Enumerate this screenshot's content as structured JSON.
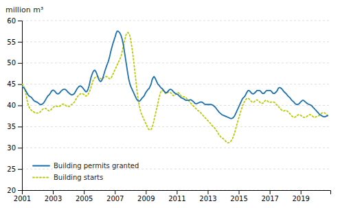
{
  "chart_data": {
    "type": "line",
    "y_label": "million m³",
    "xlim": [
      2001.0,
      2020.92
    ],
    "xticks": [
      2001,
      2003,
      2005,
      2007,
      2009,
      2011,
      2013,
      2015,
      2017,
      2019
    ],
    "ylim": [
      20,
      60
    ],
    "yticks": [
      20,
      25,
      30,
      35,
      40,
      45,
      50,
      55,
      60
    ],
    "grid": "y",
    "legend": "lower left",
    "x": [
      2001,
      2001.0627,
      2001.1254,
      2001.1881,
      2001.2508,
      2001.3135,
      2001.3762,
      2001.4389,
      2001.5016,
      2001.5643,
      2001.627,
      2001.6897,
      2001.7524,
      2001.8151,
      2001.8778,
      2001.9405,
      2002.0032,
      2002.0659,
      2002.1286,
      2002.1913,
      2002.254,
      2002.3167,
      2002.3794,
      2002.4421,
      2002.5048,
      2002.5675,
      2002.6302,
      2002.6929,
      2002.7556,
      2002.8183,
      2002.881,
      2002.9437,
      2003.0063,
      2003.069,
      2003.1317,
      2003.1944,
      2003.2571,
      2003.3198,
      2003.3825,
      2003.4452,
      2003.5079,
      2003.5706,
      2003.6333,
      2003.696,
      2003.7587,
      2003.8214,
      2003.8841,
      2003.9468,
      2004.0095,
      2004.0722,
      2004.1349,
      2004.1976,
      2004.2603,
      2004.323,
      2004.3857,
      2004.4484,
      2004.5111,
      2004.5738,
      2004.6365,
      2004.6992,
      2004.7619,
      2004.8246,
      2004.8873,
      2004.95,
      2005.0127,
      2005.0754,
      2005.1381,
      2005.2008,
      2005.2635,
      2005.3262,
      2005.3889,
      2005.4516,
      2005.5143,
      2005.577,
      2005.6397,
      2005.7024,
      2005.7651,
      2005.8278,
      2005.8905,
      2005.9532,
      2006.0159,
      2006.0786,
      2006.1413,
      2006.204,
      2006.2667,
      2006.3294,
      2006.3921,
      2006.4548,
      2006.5175,
      2006.5802,
      2006.6429,
      2006.7056,
      2006.7683,
      2006.831,
      2006.8937,
      2006.9563,
      2007.019,
      2007.0817,
      2007.1444,
      2007.2071,
      2007.2698,
      2007.3325,
      2007.3952,
      2007.4579,
      2007.5206,
      2007.5833,
      2007.646,
      2007.7087,
      2007.7714,
      2007.8341,
      2007.8968,
      2007.9595,
      2008.0222,
      2008.0849,
      2008.1476,
      2008.2103,
      2008.273,
      2008.3357,
      2008.3984,
      2008.4611,
      2008.5238,
      2008.5865,
      2008.6492,
      2008.7119,
      2008.7746,
      2008.8373,
      2008.9,
      2008.9627,
      2009.0254,
      2009.0881,
      2009.1508,
      2009.2135,
      2009.2762,
      2009.3389,
      2009.4016,
      2009.4643,
      2009.527,
      2009.5897,
      2009.6524,
      2009.7151,
      2009.7778,
      2009.8405,
      2009.9032,
      2009.9659,
      2010.0286,
      2010.0913,
      2010.154,
      2010.2167,
      2010.2794,
      2010.3421,
      2010.4048,
      2010.4675,
      2010.5302,
      2010.5929,
      2010.6556,
      2010.7183,
      2010.781,
      2010.8437,
      2010.9063,
      2010.969,
      2011.0317,
      2011.0944,
      2011.1571,
      2011.2198,
      2011.2825,
      2011.3452,
      2011.4079,
      2011.4706,
      2011.5333,
      2011.596,
      2011.6587,
      2011.7214,
      2011.7841,
      2011.8468,
      2011.9095,
      2011.9722,
      2012.0349,
      2012.0976,
      2012.1603,
      2012.223,
      2012.2857,
      2012.3484,
      2012.4111,
      2012.4738,
      2012.5365,
      2012.5992,
      2012.6619,
      2012.7246,
      2012.7873,
      2012.85,
      2012.9127,
      2012.9754,
      2013.0381,
      2013.1008,
      2013.1635,
      2013.2262,
      2013.2889,
      2013.3516,
      2013.4143,
      2013.477,
      2013.5397,
      2013.6024,
      2013.6651,
      2013.7278,
      2013.7905,
      2013.8532,
      2013.9159,
      2013.9786,
      2014.0413,
      2014.104,
      2014.1667,
      2014.2294,
      2014.2921,
      2014.3548,
      2014.4175,
      2014.4802,
      2014.5429,
      2014.6056,
      2014.6683,
      2014.731,
      2014.7937,
      2014.8563,
      2014.919,
      2014.9817,
      2015.0444,
      2015.1071,
      2015.1698,
      2015.2325,
      2015.2952,
      2015.3579,
      2015.4206,
      2015.4833,
      2015.546,
      2015.6087,
      2015.6714,
      2015.7341,
      2015.7968,
      2015.8595,
      2015.9222,
      2015.9849,
      2016.0476,
      2016.1103,
      2016.173,
      2016.2357,
      2016.2984,
      2016.3611,
      2016.4238,
      2016.4865,
      2016.5492,
      2016.6119,
      2016.6746,
      2016.7373,
      2016.8,
      2016.8627,
      2016.9254,
      2016.9881,
      2017.0508,
      2017.1135,
      2017.1762,
      2017.2389,
      2017.3016,
      2017.3643,
      2017.427,
      2017.4897,
      2017.5524,
      2017.6151,
      2017.6778,
      2017.7405,
      2017.8032,
      2017.8659,
      2017.9286,
      2017.9913,
      2018.054,
      2018.1167,
      2018.1794,
      2018.2421,
      2018.3048,
      2018.3675,
      2018.4302,
      2018.4929,
      2018.5556,
      2018.6183,
      2018.681,
      2018.7437,
      2018.8063,
      2018.869,
      2018.9317,
      2018.9944,
      2019.0571,
      2019.1198,
      2019.1825,
      2019.2452,
      2019.3079,
      2019.3706,
      2019.4333,
      2019.496,
      2019.5587,
      2019.6214,
      2019.6841,
      2019.7468,
      2019.8095,
      2019.8722,
      2019.9349,
      2019.9976,
      2020.0603,
      2020.123,
      2020.1857,
      2020.2484,
      2020.3111,
      2020.3738,
      2020.4365,
      2020.4992,
      2020.5619,
      2020.6246,
      2020.6873,
      2020.75
    ],
    "series": [
      {
        "name": "Building permits granted",
        "color": "#1a6faf",
        "line_style": "solid",
        "values": [
          44.5,
          44.3,
          44.1,
          43.8,
          43.4,
          43.0,
          42.6,
          42.3,
          42.1,
          42.0,
          41.8,
          41.5,
          41.2,
          41.0,
          40.9,
          40.8,
          40.7,
          40.5,
          40.3,
          40.2,
          40.2,
          40.3,
          40.5,
          40.8,
          41.2,
          41.6,
          42.0,
          42.3,
          42.5,
          42.8,
          43.2,
          43.5,
          43.6,
          43.5,
          43.3,
          43.0,
          42.8,
          42.7,
          42.8,
          43.0,
          43.3,
          43.5,
          43.7,
          43.8,
          43.8,
          43.7,
          43.5,
          43.2,
          43.0,
          42.8,
          42.6,
          42.5,
          42.5,
          42.6,
          42.8,
          43.2,
          43.6,
          44.0,
          44.3,
          44.5,
          44.6,
          44.5,
          44.3,
          44.0,
          43.7,
          43.4,
          43.2,
          43.3,
          43.8,
          44.5,
          45.5,
          46.5,
          47.2,
          47.8,
          48.2,
          48.3,
          48.0,
          47.5,
          46.8,
          46.2,
          45.8,
          45.6,
          45.8,
          46.3,
          47.0,
          47.8,
          48.5,
          49.2,
          49.8,
          50.4,
          51.2,
          52.2,
          53.2,
          54.0,
          54.8,
          55.5,
          56.2,
          57.0,
          57.5,
          57.5,
          57.3,
          57.0,
          56.5,
          55.8,
          54.8,
          53.5,
          52.0,
          50.5,
          49.0,
          47.5,
          46.2,
          45.2,
          44.5,
          44.0,
          43.5,
          43.0,
          42.5,
          42.0,
          41.5,
          41.2,
          41.0,
          41.0,
          41.2,
          41.5,
          41.8,
          42.0,
          42.3,
          42.8,
          43.2,
          43.5,
          43.8,
          44.0,
          44.5,
          45.0,
          46.0,
          46.5,
          46.8,
          46.5,
          46.0,
          45.5,
          45.0,
          44.8,
          44.5,
          44.2,
          44.0,
          43.8,
          43.5,
          43.2,
          43.0,
          43.0,
          43.2,
          43.5,
          43.7,
          43.8,
          43.7,
          43.5,
          43.2,
          43.0,
          42.8,
          42.7,
          42.6,
          42.5,
          42.2,
          42.0,
          41.8,
          41.7,
          41.6,
          41.5,
          41.3,
          41.2,
          41.2,
          41.2,
          41.2,
          41.3,
          41.3,
          41.2,
          41.0,
          40.8,
          40.5,
          40.4,
          40.4,
          40.5,
          40.6,
          40.7,
          40.8,
          40.8,
          40.7,
          40.5,
          40.3,
          40.2,
          40.2,
          40.2,
          40.2,
          40.2,
          40.2,
          40.2,
          40.1,
          40.0,
          39.8,
          39.6,
          39.3,
          39.0,
          38.7,
          38.4,
          38.2,
          38.0,
          37.8,
          37.7,
          37.6,
          37.5,
          37.4,
          37.3,
          37.2,
          37.1,
          37.0,
          36.9,
          36.9,
          37.0,
          37.2,
          37.5,
          38.0,
          38.5,
          39.0,
          39.5,
          40.0,
          40.5,
          41.0,
          41.5,
          41.8,
          42.0,
          42.3,
          42.8,
          43.2,
          43.5,
          43.5,
          43.3,
          43.0,
          42.8,
          42.7,
          42.8,
          43.0,
          43.2,
          43.5,
          43.5,
          43.5,
          43.5,
          43.3,
          43.0,
          42.8,
          42.8,
          43.0,
          43.3,
          43.5,
          43.5,
          43.5,
          43.5,
          43.5,
          43.3,
          43.0,
          42.8,
          42.8,
          43.0,
          43.2,
          43.5,
          44.0,
          44.2,
          44.2,
          44.0,
          43.8,
          43.5,
          43.2,
          43.0,
          42.8,
          42.5,
          42.2,
          42.0,
          41.8,
          41.5,
          41.2,
          41.0,
          40.8,
          40.5,
          40.3,
          40.2,
          40.2,
          40.3,
          40.5,
          40.8,
          41.0,
          41.2,
          41.2,
          41.0,
          40.8,
          40.6,
          40.4,
          40.3,
          40.2,
          40.1,
          40.0,
          39.8,
          39.5,
          39.3,
          39.0,
          38.8,
          38.5,
          38.3,
          38.0,
          37.8,
          37.7,
          37.5,
          37.4,
          37.3,
          37.3,
          37.4,
          37.5,
          37.6
        ]
      },
      {
        "name": "Building starts",
        "color": "#b8cc00",
        "line_style": "dotted",
        "values": [
          45.0,
          44.8,
          44.5,
          43.8,
          42.8,
          41.5,
          40.5,
          39.8,
          39.3,
          39.0,
          38.8,
          38.6,
          38.5,
          38.3,
          38.2,
          38.2,
          38.2,
          38.2,
          38.3,
          38.5,
          38.7,
          39.0,
          39.2,
          39.3,
          39.3,
          39.2,
          39.0,
          38.8,
          38.7,
          38.8,
          39.0,
          39.3,
          39.5,
          39.7,
          39.8,
          39.8,
          39.8,
          39.7,
          39.7,
          39.8,
          40.0,
          40.2,
          40.3,
          40.3,
          40.2,
          40.0,
          39.8,
          39.7,
          39.7,
          39.8,
          40.0,
          40.2,
          40.3,
          40.5,
          40.8,
          41.2,
          41.6,
          42.0,
          42.3,
          42.5,
          42.7,
          42.8,
          42.8,
          42.7,
          42.5,
          42.3,
          42.2,
          42.3,
          42.5,
          43.0,
          43.5,
          44.2,
          45.0,
          45.7,
          46.2,
          46.5,
          46.7,
          46.8,
          46.8,
          46.7,
          46.5,
          46.3,
          46.2,
          46.3,
          46.5,
          46.7,
          46.8,
          46.8,
          46.7,
          46.5,
          46.3,
          46.3,
          46.5,
          47.0,
          47.5,
          48.0,
          48.5,
          49.0,
          49.5,
          50.0,
          50.5,
          51.0,
          51.5,
          52.5,
          53.5,
          54.5,
          55.5,
          56.5,
          57.0,
          57.2,
          57.0,
          56.5,
          55.5,
          54.0,
          52.5,
          50.5,
          48.5,
          46.5,
          44.5,
          42.5,
          41.0,
          39.8,
          38.8,
          38.0,
          37.5,
          37.0,
          36.5,
          36.0,
          35.5,
          35.0,
          34.5,
          34.3,
          34.2,
          34.3,
          34.8,
          35.5,
          36.5,
          37.5,
          38.5,
          39.5,
          40.5,
          41.5,
          42.5,
          43.2,
          43.5,
          43.5,
          43.3,
          43.0,
          42.8,
          42.8,
          43.0,
          43.2,
          43.2,
          43.0,
          42.8,
          42.5,
          42.3,
          42.3,
          42.5,
          42.8,
          43.0,
          43.0,
          42.8,
          42.5,
          42.2,
          42.0,
          42.0,
          42.0,
          42.0,
          41.8,
          41.5,
          41.2,
          41.0,
          40.8,
          40.5,
          40.2,
          40.0,
          39.8,
          39.5,
          39.3,
          39.0,
          38.8,
          38.7,
          38.5,
          38.3,
          38.0,
          37.8,
          37.5,
          37.2,
          37.0,
          36.8,
          36.5,
          36.3,
          36.0,
          35.8,
          35.5,
          35.2,
          35.0,
          34.8,
          34.5,
          34.2,
          33.8,
          33.5,
          33.0,
          32.8,
          32.5,
          32.3,
          32.2,
          32.0,
          31.8,
          31.5,
          31.3,
          31.2,
          31.2,
          31.3,
          31.5,
          31.8,
          32.2,
          32.8,
          33.5,
          34.3,
          35.2,
          36.0,
          36.8,
          37.5,
          38.3,
          39.0,
          39.8,
          40.3,
          40.8,
          41.2,
          41.5,
          41.7,
          41.7,
          41.5,
          41.3,
          41.0,
          40.8,
          40.7,
          40.8,
          41.0,
          41.2,
          41.3,
          41.2,
          41.0,
          40.8,
          40.5,
          40.5,
          40.5,
          40.7,
          41.0,
          41.2,
          41.2,
          41.0,
          40.8,
          40.7,
          40.7,
          40.8,
          40.8,
          40.8,
          40.7,
          40.5,
          40.2,
          40.0,
          39.8,
          39.5,
          39.3,
          39.0,
          38.8,
          38.7,
          38.7,
          38.8,
          38.8,
          38.7,
          38.5,
          38.3,
          38.0,
          37.8,
          37.5,
          37.3,
          37.2,
          37.2,
          37.3,
          37.5,
          37.7,
          37.8,
          37.8,
          37.7,
          37.5,
          37.3,
          37.2,
          37.2,
          37.2,
          37.3,
          37.5,
          37.7,
          37.8,
          37.8,
          37.7,
          37.5,
          37.3,
          37.2,
          37.2,
          37.3,
          37.4,
          37.5,
          37.6,
          37.8,
          38.0,
          38.2,
          38.3,
          38.3,
          38.2,
          38.0,
          37.8,
          37.6
        ]
      }
    ]
  }
}
